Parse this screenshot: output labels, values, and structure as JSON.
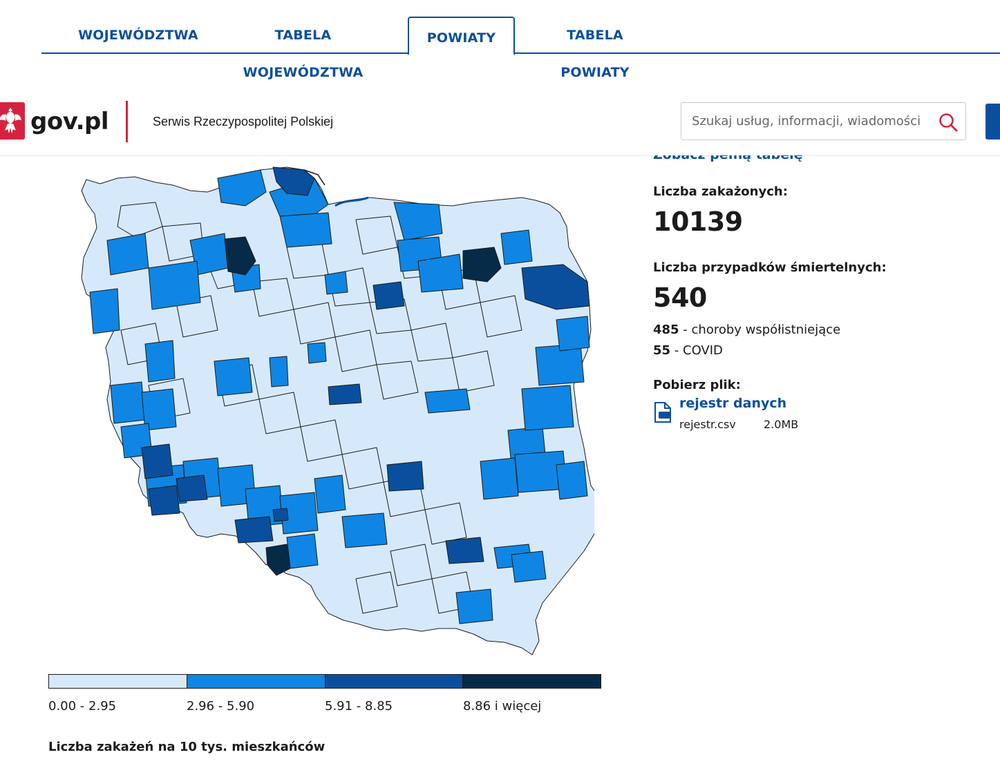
{
  "tabs": [
    {
      "label": "WOJEWÓDZTWA",
      "active": false
    },
    {
      "label": "TABELA WOJEWÓDZTWA",
      "active": false
    },
    {
      "label": "POWIATY",
      "active": true
    },
    {
      "label": "TABELA POWIATY",
      "active": false
    }
  ],
  "header": {
    "logo_text": "gov.pl",
    "service_name": "Serwis Rzeczypospolitej Polskiej",
    "search_placeholder": "Szukaj usług, informacji, wiadomości"
  },
  "panel": {
    "full_table_link": "Zobacz pełną tabelę",
    "infected_label": "Liczba zakażonych:",
    "infected_value": "10139",
    "deaths_label": "Liczba przypadków śmiertelnych:",
    "deaths_value": "540",
    "deaths_comorbid_count": "485",
    "deaths_comorbid_text": " - choroby współistniejące",
    "deaths_covid_count": "55",
    "deaths_covid_text": " - COVID",
    "download_label": "Pobierz plik:",
    "file_link": "rejestr danych",
    "file_name": "rejestr.csv",
    "file_size": "2.0MB"
  },
  "legend": {
    "caption": "Liczba zakażeń na 10 tys. mieszkańców",
    "bins": [
      {
        "label": "0.00 - 2.95",
        "color": "#d6e9fb"
      },
      {
        "label": "2.96 - 5.90",
        "color": "#0f86e3"
      },
      {
        "label": "5.91 - 8.85",
        "color": "#0a4f9e"
      },
      {
        "label": "8.86 i więcej",
        "color": "#062b49"
      }
    ]
  },
  "colors": {
    "accent": "#0a4f9e",
    "brand_red": "#d5233f",
    "map_stroke": "#1b1b1b"
  },
  "icons": {
    "search": "search-icon",
    "file": "file-csv-icon",
    "logo": "polish-eagle-icon"
  }
}
